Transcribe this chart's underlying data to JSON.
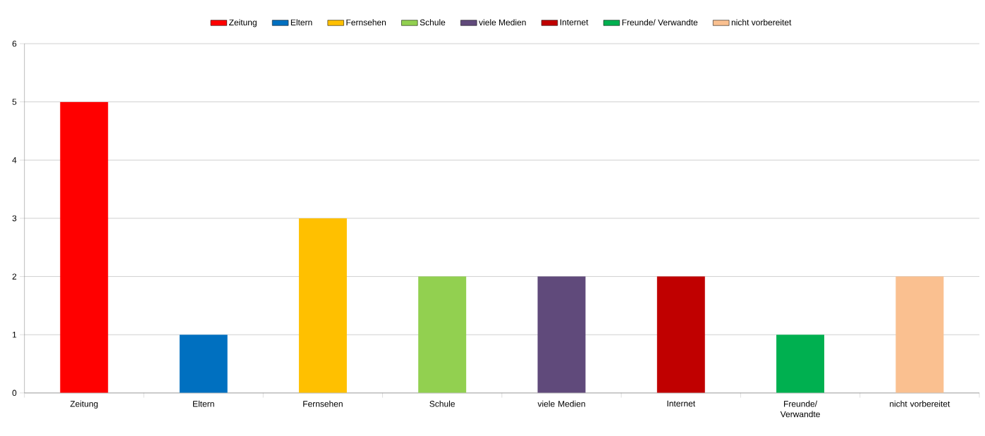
{
  "chart_data": {
    "type": "bar",
    "categories": [
      "Zeitung",
      "Eltern",
      "Fernsehen",
      "Schule",
      "viele Medien",
      "Internet",
      "Freunde/ Verwandte",
      "nicht vorbereitet"
    ],
    "series": [
      {
        "name": "Zeitung",
        "color": "#ff0000",
        "values": [
          5,
          null,
          null,
          null,
          null,
          null,
          null,
          null
        ]
      },
      {
        "name": "Eltern",
        "color": "#0070c0",
        "values": [
          null,
          1,
          null,
          null,
          null,
          null,
          null,
          null
        ]
      },
      {
        "name": "Fernsehen",
        "color": "#ffc000",
        "values": [
          null,
          null,
          3,
          null,
          null,
          null,
          null,
          null
        ]
      },
      {
        "name": "Schule",
        "color": "#92d050",
        "values": [
          null,
          null,
          null,
          2,
          null,
          null,
          null,
          null
        ]
      },
      {
        "name": "viele Medien",
        "color": "#604a7b",
        "values": [
          null,
          null,
          null,
          null,
          2,
          null,
          null,
          null
        ]
      },
      {
        "name": "Internet",
        "color": "#c00000",
        "values": [
          null,
          null,
          null,
          null,
          null,
          2,
          null,
          null
        ]
      },
      {
        "name": "Freunde/ Verwandte",
        "color": "#00b050",
        "values": [
          null,
          null,
          null,
          null,
          null,
          null,
          1,
          null
        ]
      },
      {
        "name": "nicht vorbereitet",
        "color": "#fac090",
        "values": [
          null,
          null,
          null,
          null,
          null,
          null,
          null,
          2
        ]
      }
    ],
    "ylim": [
      0,
      6
    ],
    "yticks": [
      0,
      1,
      2,
      3,
      4,
      5,
      6
    ],
    "grid": "y",
    "legend": "top"
  }
}
